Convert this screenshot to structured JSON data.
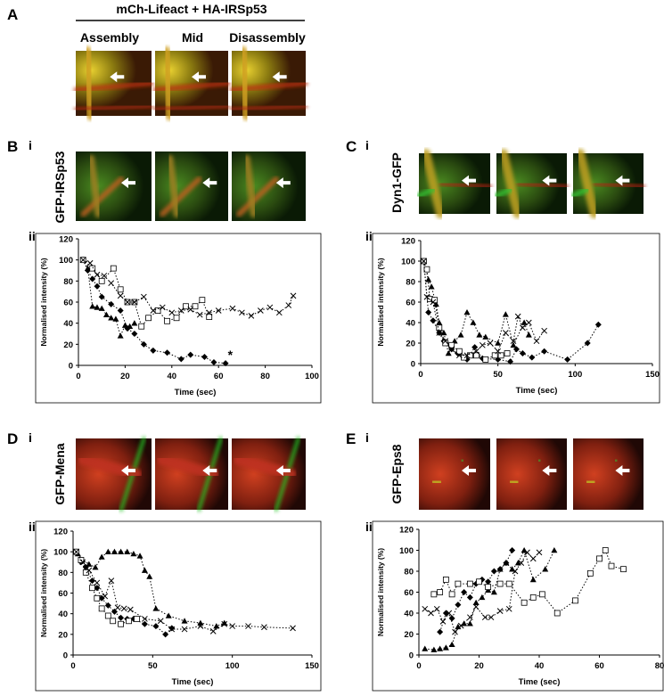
{
  "figure": {
    "panel_a": {
      "label": "A",
      "title": "mCh-Lifeact + HA-IRSp53",
      "stages": [
        "Assembly",
        "Mid",
        "Disassembly"
      ]
    },
    "panels": [
      {
        "label": "B",
        "i": "i",
        "ii": "ii",
        "protein": "GFP-IRSp53"
      },
      {
        "label": "C",
        "i": "i",
        "ii": "ii",
        "protein": "Dyn1-GFP"
      },
      {
        "label": "D",
        "i": "i",
        "ii": "ii",
        "protein": "GFP-Mena"
      },
      {
        "label": "E",
        "i": "i",
        "ii": "ii",
        "protein": "GFP-Eps8"
      }
    ]
  },
  "chart_data": [
    {
      "type": "scatter",
      "xlabel": "Time (sec)",
      "ylabel": "Normalised intensity (%)",
      "line_style": "dotted",
      "xlim": [
        0,
        100
      ],
      "xticks": [
        0,
        20,
        40,
        60,
        80,
        100
      ],
      "ylim": [
        0,
        120
      ],
      "yticks": [
        0,
        20,
        40,
        60,
        80,
        100,
        120
      ],
      "annotations": [
        {
          "text": "*",
          "x": 65,
          "y": 6
        }
      ],
      "series": [
        {
          "marker": "diamond",
          "color": "#000000",
          "x": [
            2,
            4,
            6,
            8,
            10,
            14,
            18,
            21,
            24,
            28,
            32,
            38,
            44,
            48,
            54,
            58,
            63
          ],
          "values": [
            100,
            90,
            82,
            75,
            65,
            58,
            52,
            35,
            30,
            20,
            14,
            12,
            6,
            10,
            8,
            3,
            2
          ]
        },
        {
          "marker": "triangle",
          "color": "#000000",
          "x": [
            2,
            4,
            6,
            8,
            10,
            12,
            14,
            16,
            18,
            20,
            22,
            24
          ],
          "values": [
            100,
            92,
            56,
            55,
            54,
            48,
            45,
            44,
            28,
            38,
            37,
            40
          ]
        },
        {
          "marker": "square",
          "color": "#000000",
          "x": [
            2,
            6,
            10,
            15,
            18,
            21,
            24,
            27,
            30,
            34,
            38,
            42,
            46,
            50,
            53,
            56
          ],
          "values": [
            100,
            92,
            80,
            92,
            72,
            60,
            60,
            37,
            45,
            52,
            42,
            45,
            56,
            56,
            62,
            46
          ]
        },
        {
          "marker": "cross",
          "color": "#000000",
          "x": [
            2,
            5,
            8,
            11,
            14,
            18,
            21,
            24,
            28,
            32,
            36,
            40,
            44,
            48,
            52,
            56,
            60,
            66,
            70,
            74,
            78,
            82,
            86,
            90,
            92
          ],
          "values": [
            100,
            97,
            86,
            85,
            78,
            66,
            60,
            60,
            65,
            52,
            55,
            50,
            52,
            53,
            48,
            50,
            52,
            54,
            50,
            47,
            52,
            55,
            50,
            57,
            66
          ]
        }
      ]
    },
    {
      "type": "scatter",
      "xlabel": "Time (sec)",
      "ylabel": "Normalised intensity (%)",
      "line_style": "dotted",
      "xlim": [
        0,
        150
      ],
      "xticks": [
        0,
        50,
        100,
        150
      ],
      "ylim": [
        0,
        120
      ],
      "yticks": [
        0,
        20,
        40,
        60,
        80,
        100,
        120
      ],
      "series": [
        {
          "marker": "diamond",
          "color": "#000000",
          "x": [
            2,
            5,
            8,
            12,
            15,
            20,
            24,
            30,
            35,
            40,
            50,
            58,
            62,
            66,
            72,
            80,
            95,
            108,
            115
          ],
          "values": [
            100,
            50,
            42,
            30,
            22,
            14,
            10,
            4,
            16,
            5,
            4,
            2,
            14,
            10,
            6,
            12,
            4,
            20,
            38
          ]
        },
        {
          "marker": "triangle",
          "color": "#000000",
          "x": [
            2,
            5,
            7,
            10,
            12,
            15,
            18,
            22,
            26,
            30,
            34,
            38,
            42,
            50,
            55,
            60,
            67,
            70
          ],
          "values": [
            100,
            82,
            75,
            58,
            40,
            30,
            10,
            22,
            28,
            50,
            40,
            28,
            26,
            20,
            48,
            18,
            40,
            28
          ]
        },
        {
          "marker": "square",
          "color": "#000000",
          "x": [
            2,
            4,
            6,
            9,
            12,
            16,
            20,
            25,
            28,
            32,
            36,
            42,
            48,
            52,
            56
          ],
          "values": [
            100,
            92,
            63,
            62,
            35,
            20,
            18,
            12,
            6,
            8,
            8,
            4,
            8,
            8,
            10
          ]
        },
        {
          "marker": "cross",
          "color": "#000000",
          "x": [
            2,
            4,
            8,
            12,
            16,
            20,
            25,
            30,
            36,
            40,
            45,
            50,
            55,
            60,
            63,
            66,
            70,
            75,
            80
          ],
          "values": [
            100,
            65,
            60,
            30,
            22,
            14,
            8,
            8,
            12,
            18,
            20,
            12,
            30,
            22,
            46,
            35,
            40,
            22,
            32
          ]
        }
      ]
    },
    {
      "type": "scatter",
      "xlabel": "Time (sec)",
      "ylabel": "Normalised intensity (%)",
      "line_style": "dotted",
      "xlim": [
        0,
        150
      ],
      "xticks": [
        0,
        50,
        100,
        150
      ],
      "ylim": [
        0,
        120
      ],
      "yticks": [
        0,
        20,
        40,
        60,
        80,
        100,
        120
      ],
      "series": [
        {
          "marker": "diamond",
          "color": "#000000",
          "x": [
            2,
            5,
            8,
            12,
            15,
            18,
            22,
            26,
            30,
            34,
            38,
            45,
            52,
            58,
            62
          ],
          "values": [
            100,
            90,
            85,
            72,
            65,
            55,
            48,
            42,
            36,
            35,
            35,
            30,
            28,
            20,
            26
          ]
        },
        {
          "marker": "triangle",
          "color": "#000000",
          "x": [
            3,
            6,
            10,
            14,
            18,
            22,
            26,
            30,
            34,
            38,
            42,
            45,
            48,
            52,
            60,
            70,
            80,
            90,
            95
          ],
          "values": [
            98,
            92,
            88,
            85,
            95,
            100,
            100,
            100,
            100,
            98,
            96,
            82,
            76,
            45,
            38,
            33,
            31,
            28,
            31
          ]
        },
        {
          "marker": "square",
          "color": "#000000",
          "x": [
            2,
            5,
            8,
            12,
            15,
            18,
            22,
            25,
            30,
            35,
            40
          ],
          "values": [
            100,
            92,
            80,
            65,
            55,
            45,
            38,
            33,
            30,
            33,
            35
          ]
        },
        {
          "marker": "cross",
          "color": "#000000",
          "x": [
            2,
            6,
            10,
            15,
            20,
            24,
            28,
            32,
            36,
            45,
            55,
            62,
            70,
            80,
            88,
            95,
            100,
            110,
            120,
            138
          ],
          "values": [
            100,
            90,
            82,
            70,
            57,
            72,
            46,
            45,
            44,
            35,
            33,
            25,
            25,
            28,
            23,
            30,
            28,
            28,
            27,
            26
          ]
        }
      ]
    },
    {
      "type": "scatter",
      "xlabel": "Time (sec)",
      "ylabel": "Normalised intensity (%)",
      "line_style": "dotted",
      "xlim": [
        0,
        80
      ],
      "xticks": [
        0,
        20,
        40,
        60,
        80
      ],
      "ylim": [
        0,
        120
      ],
      "yticks": [
        0,
        20,
        40,
        60,
        80,
        100,
        120
      ],
      "series": [
        {
          "marker": "diamond",
          "color": "#000000",
          "x": [
            7,
            9,
            11,
            13,
            15,
            17,
            19,
            21,
            23,
            25,
            27,
            29,
            31
          ],
          "values": [
            22,
            40,
            35,
            48,
            60,
            55,
            68,
            72,
            70,
            80,
            82,
            88,
            100
          ]
        },
        {
          "marker": "triangle",
          "color": "#000000",
          "x": [
            2,
            5,
            7,
            9,
            11,
            13,
            15,
            17,
            19,
            21,
            23,
            25,
            27,
            29,
            31,
            33,
            35,
            38,
            42,
            45
          ],
          "values": [
            6,
            5,
            6,
            7,
            10,
            27,
            30,
            30,
            50,
            55,
            62,
            60,
            82,
            88,
            82,
            88,
            100,
            72,
            82,
            100
          ]
        },
        {
          "marker": "square",
          "color": "#000000",
          "x": [
            5,
            7,
            9,
            11,
            13,
            17,
            20,
            23,
            27,
            30,
            35,
            38,
            41,
            46,
            52,
            57,
            60,
            62,
            64,
            68
          ],
          "values": [
            58,
            60,
            72,
            58,
            68,
            68,
            70,
            65,
            68,
            68,
            50,
            55,
            58,
            40,
            52,
            78,
            92,
            100,
            85,
            82
          ]
        },
        {
          "marker": "cross",
          "color": "#000000",
          "x": [
            2,
            4,
            6,
            8,
            10,
            12,
            14,
            17,
            19,
            22,
            24,
            27,
            30,
            32,
            34,
            36,
            38,
            40
          ],
          "values": [
            44,
            40,
            44,
            32,
            40,
            22,
            28,
            36,
            46,
            36,
            36,
            42,
            44,
            80,
            88,
            98,
            92,
            98
          ]
        }
      ]
    }
  ]
}
